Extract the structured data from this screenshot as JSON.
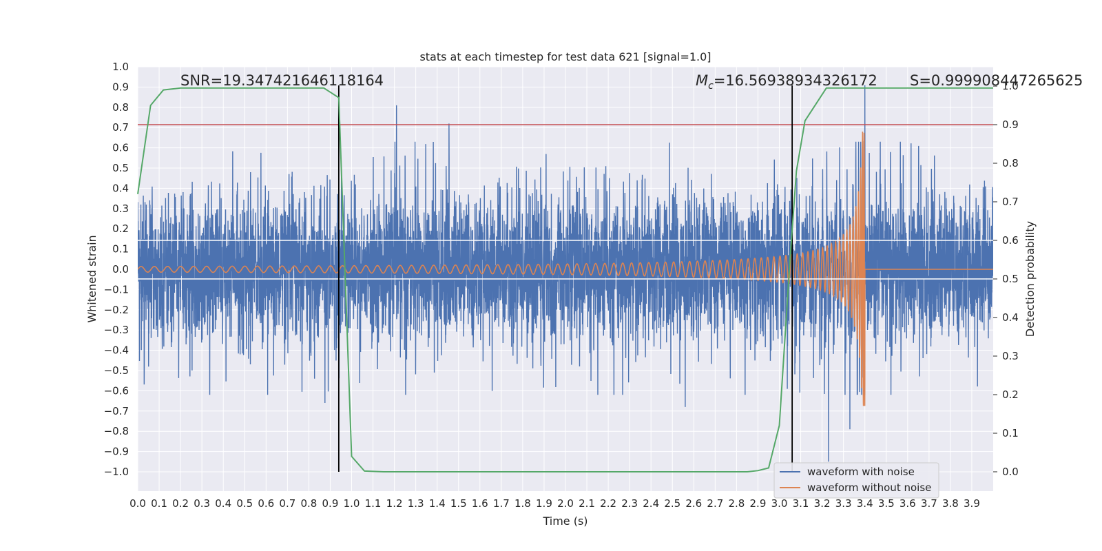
{
  "chart_data": {
    "type": "line",
    "title": "stats at each timestep for test data 621 [signal=1.0]",
    "xlabel": "Time (s)",
    "ylabel": "Whitened strain",
    "y2label": "Detection probability",
    "xlim": [
      0.0,
      4.0
    ],
    "ylim": [
      -1.09,
      1.0
    ],
    "y2lim": [
      -0.05,
      1.035
    ],
    "xticks": [
      "0.0",
      "0.1",
      "0.2",
      "0.3",
      "0.4",
      "0.5",
      "0.6",
      "0.7",
      "0.8",
      "0.9",
      "1.0",
      "1.1",
      "1.2",
      "1.3",
      "1.4",
      "1.5",
      "1.6",
      "1.7",
      "1.8",
      "1.9",
      "2.0",
      "2.1",
      "2.2",
      "2.3",
      "2.4",
      "2.5",
      "2.6",
      "2.7",
      "2.8",
      "2.9",
      "3.0",
      "3.1",
      "3.2",
      "3.3",
      "3.4",
      "3.5",
      "3.6",
      "3.7",
      "3.8",
      "3.9"
    ],
    "yticks": [
      "1.0",
      "0.9",
      "0.8",
      "0.7",
      "0.6",
      "0.5",
      "0.4",
      "0.3",
      "0.2",
      "0.1",
      "0.0",
      "−0.1",
      "−0.2",
      "−0.3",
      "−0.4",
      "−0.5",
      "−0.6",
      "−0.7",
      "−0.8",
      "−0.9",
      "−1.0"
    ],
    "y2ticks": [
      "1.0",
      "0.9",
      "0.8",
      "0.7",
      "0.6",
      "0.5",
      "0.4",
      "0.3",
      "0.2",
      "0.1",
      "0.0"
    ],
    "grid": true,
    "legend_position": "bottom-right",
    "annotations": {
      "snr": "SNR=19.347421646118164",
      "mc_symbol": "M",
      "mc_subscript": "c",
      "mc_value": "=16.56938934326172",
      "s": "S=0.999908447265625"
    },
    "series": [
      {
        "name": "waveform with noise",
        "color": "#4c72b0",
        "axis": "left",
        "description_values": "dense noise, amplitude mostly within [-0.5, 0.6], extremes 0.81 at 1.21 s, 0.91 at 3.4 s, -0.95 at 3.23 s"
      },
      {
        "name": "waveform without noise",
        "color": "#dd8452",
        "axis": "left"
      },
      {
        "name": "",
        "color": "#55a868",
        "axis": "right",
        "x": [
          0.0,
          0.06,
          0.12,
          0.2,
          0.3,
          0.5,
          0.7,
          0.87,
          0.94,
          1.0,
          1.06,
          1.15,
          1.5,
          2.0,
          2.5,
          2.85,
          2.9,
          2.95,
          3.0,
          3.05,
          3.08,
          3.12,
          3.22,
          3.5,
          4.0
        ],
        "values": [
          0.72,
          0.95,
          0.99,
          0.995,
          0.995,
          0.995,
          0.995,
          0.995,
          0.97,
          0.04,
          0.002,
          0.0,
          0.0,
          0.0,
          0.0,
          0.0,
          0.003,
          0.01,
          0.12,
          0.55,
          0.78,
          0.91,
          0.995,
          0.995,
          0.995
        ]
      },
      {
        "name": "",
        "color": "#c44e52",
        "axis": "right",
        "values": [
          0.9
        ]
      },
      {
        "name": "",
        "color": "#ffffff",
        "axis": "right",
        "values": [
          0.6,
          0.5
        ]
      }
    ],
    "vlines": [
      0.94,
      3.06
    ],
    "waveform": {
      "start_amplitude": 0.014,
      "merger_time": 3.4,
      "merger_amplitude": 0.68,
      "start_frequency": 16,
      "end_frequency": 90
    },
    "noise_spikes": [
      {
        "x": 1.21,
        "y": 0.81
      },
      {
        "x": 1.455,
        "y": 0.72
      },
      {
        "x": 3.4,
        "y": 0.91
      },
      {
        "x": 3.23,
        "y": -0.95
      },
      {
        "x": 0.875,
        "y": -0.66
      },
      {
        "x": 2.56,
        "y": -0.68
      },
      {
        "x": 3.33,
        "y": -0.79
      }
    ]
  }
}
